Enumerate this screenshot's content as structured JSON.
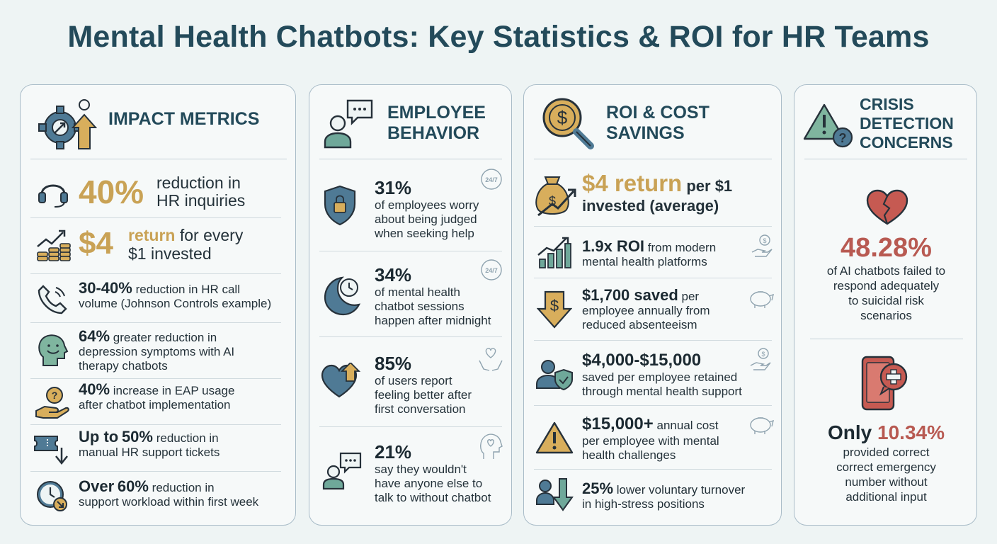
{
  "title": "Mental Health Chatbots: Key Statistics & ROI for HR Teams",
  "colors": {
    "navy": "#234a5a",
    "gold": "#c9a255",
    "red": "#b85a52",
    "teal": "#6fa89a",
    "blue": "#4f7a95"
  },
  "impact": {
    "heading": "IMPACT METRICS",
    "items": [
      {
        "value": "40%",
        "text_a": "reduction in",
        "text_b": "HR inquiries",
        "icon": "headset-icon"
      },
      {
        "value": "$4",
        "text_gold": "return",
        "text_a": "for every",
        "text_b": "$1 invested",
        "icon": "coins-chart-icon"
      },
      {
        "value": "30-40%",
        "text_a": "reduction in HR call",
        "text_b": "volume (Johnson Controls example)",
        "icon": "phone-icon"
      },
      {
        "value": "64%",
        "text_a": "greater reduction in",
        "text_b": "depression symptoms with AI",
        "text_c": "therapy chatbots",
        "icon": "smiling-head-icon"
      },
      {
        "value": "40%",
        "text_a": "increase in EAP usage",
        "text_b": "after chatbot implementation",
        "icon": "helping-hand-icon"
      },
      {
        "prefix": "Up to",
        "value": "50%",
        "text_a": "reduction in",
        "text_b": "manual HR support tickets",
        "icon": "ticket-down-icon"
      },
      {
        "prefix": "Over",
        "value": "60%",
        "text_a": "reduction in",
        "text_b": "support workload within first week",
        "icon": "clock-down-icon"
      }
    ]
  },
  "behavior": {
    "heading_a": "EMPLOYEE",
    "heading_b": "BEHAVIOR",
    "badge": "24/7",
    "items": [
      {
        "value": "31%",
        "lines": [
          "of employees worry",
          "about being judged",
          "when seeking help"
        ],
        "icon": "shield-lock-icon"
      },
      {
        "value": "34%",
        "lines": [
          "of mental health",
          "chatbot sessions",
          "happen after midnight"
        ],
        "icon": "moon-clock-icon"
      },
      {
        "value": "85%",
        "lines": [
          "of users report",
          "feeling better after",
          "first conversation"
        ],
        "icon": "heart-up-icon"
      },
      {
        "value": "21%",
        "lines": [
          "say they wouldn't",
          "have anyone else to",
          "talk to without chatbot"
        ],
        "icon": "person-chat-icon"
      }
    ]
  },
  "roi": {
    "heading_a": "ROI & COST",
    "heading_b": "SAVINGS",
    "items": [
      {
        "value": "$4 return",
        "suffix": "per $1",
        "line2": "invested (average)",
        "icon": "money-bag-icon"
      },
      {
        "value": "1.9x ROI",
        "suffix": "from modern",
        "line2": "mental health platforms",
        "icon": "bar-chart-icon"
      },
      {
        "value": "$1,700 saved",
        "suffix": "per",
        "line2": "employee annually from",
        "line3": "reduced absenteeism",
        "icon": "dollar-down-icon"
      },
      {
        "value": "$4,000-$15,000",
        "suffix": "",
        "line2": "saved per employee retained",
        "line3": "through mental health support",
        "icon": "person-shield-icon"
      },
      {
        "value": "$15,000+",
        "suffix": "annual cost",
        "line2": "per employee with mental",
        "line3": "health challenges",
        "icon": "warning-icon"
      },
      {
        "value": "25%",
        "suffix": "lower voluntary turnover",
        "line2": "in high-stress positions",
        "icon": "person-down-icon"
      }
    ]
  },
  "crisis": {
    "heading_a": "CRISIS",
    "heading_b": "DETECTION",
    "heading_c": "CONCERNS",
    "stat1": {
      "value": "48.28%",
      "lines": [
        "of AI chatbots failed to",
        "respond adequately",
        "to suicidal risk",
        "scenarios"
      ]
    },
    "stat2": {
      "prefix": "Only",
      "value": "10.34%",
      "lines": [
        "provided correct",
        "correct emergency",
        "number without",
        "additional input"
      ]
    }
  }
}
